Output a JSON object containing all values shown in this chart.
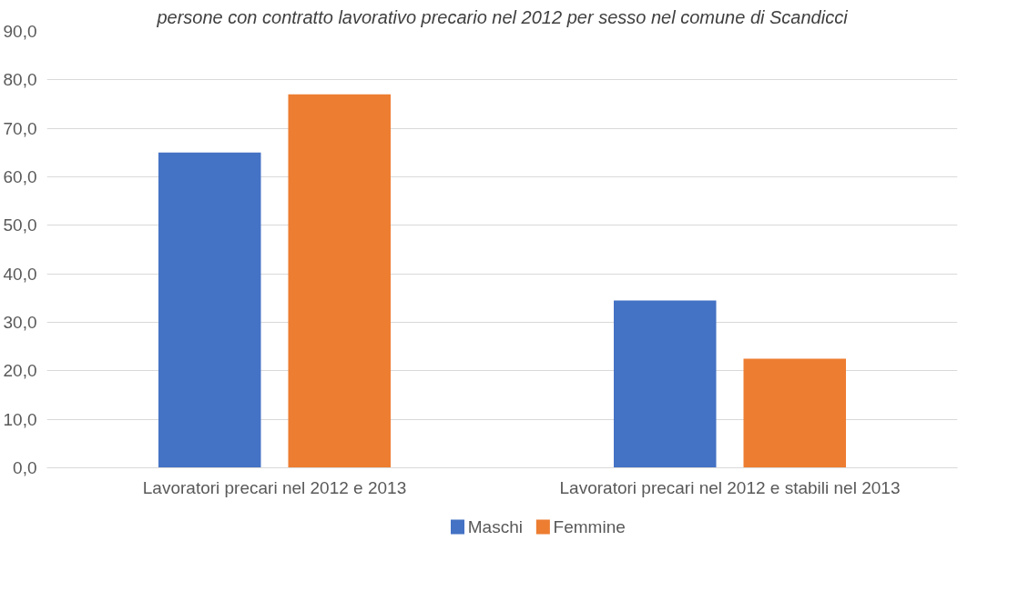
{
  "chart_data": {
    "type": "bar",
    "title": "persone con contratto lavorativo precario nel 2012 per sesso nel comune di Scandicci",
    "categories": [
      "Lavoratori precari nel 2012 e 2013",
      "Lavoratori precari nel 2012 e stabili nel 2013"
    ],
    "series": [
      {
        "name": "Maschi",
        "color": "#4472c4",
        "values": [
          65,
          34.5
        ]
      },
      {
        "name": "Femmine",
        "color": "#ed7d31",
        "values": [
          77,
          22.5
        ]
      }
    ],
    "ylim": [
      0,
      90
    ],
    "yticks": [
      {
        "value": 0,
        "label": "0,0"
      },
      {
        "value": 10,
        "label": "10,0"
      },
      {
        "value": 20,
        "label": "20,0"
      },
      {
        "value": 30,
        "label": "30,0"
      },
      {
        "value": 40,
        "label": "40,0"
      },
      {
        "value": 50,
        "label": "50,0"
      },
      {
        "value": 60,
        "label": "60,0"
      },
      {
        "value": 70,
        "label": "70,0"
      },
      {
        "value": 80,
        "label": "80,0"
      },
      {
        "value": 90,
        "label": "90,0"
      }
    ],
    "grid": "y",
    "legend": "bottom"
  }
}
